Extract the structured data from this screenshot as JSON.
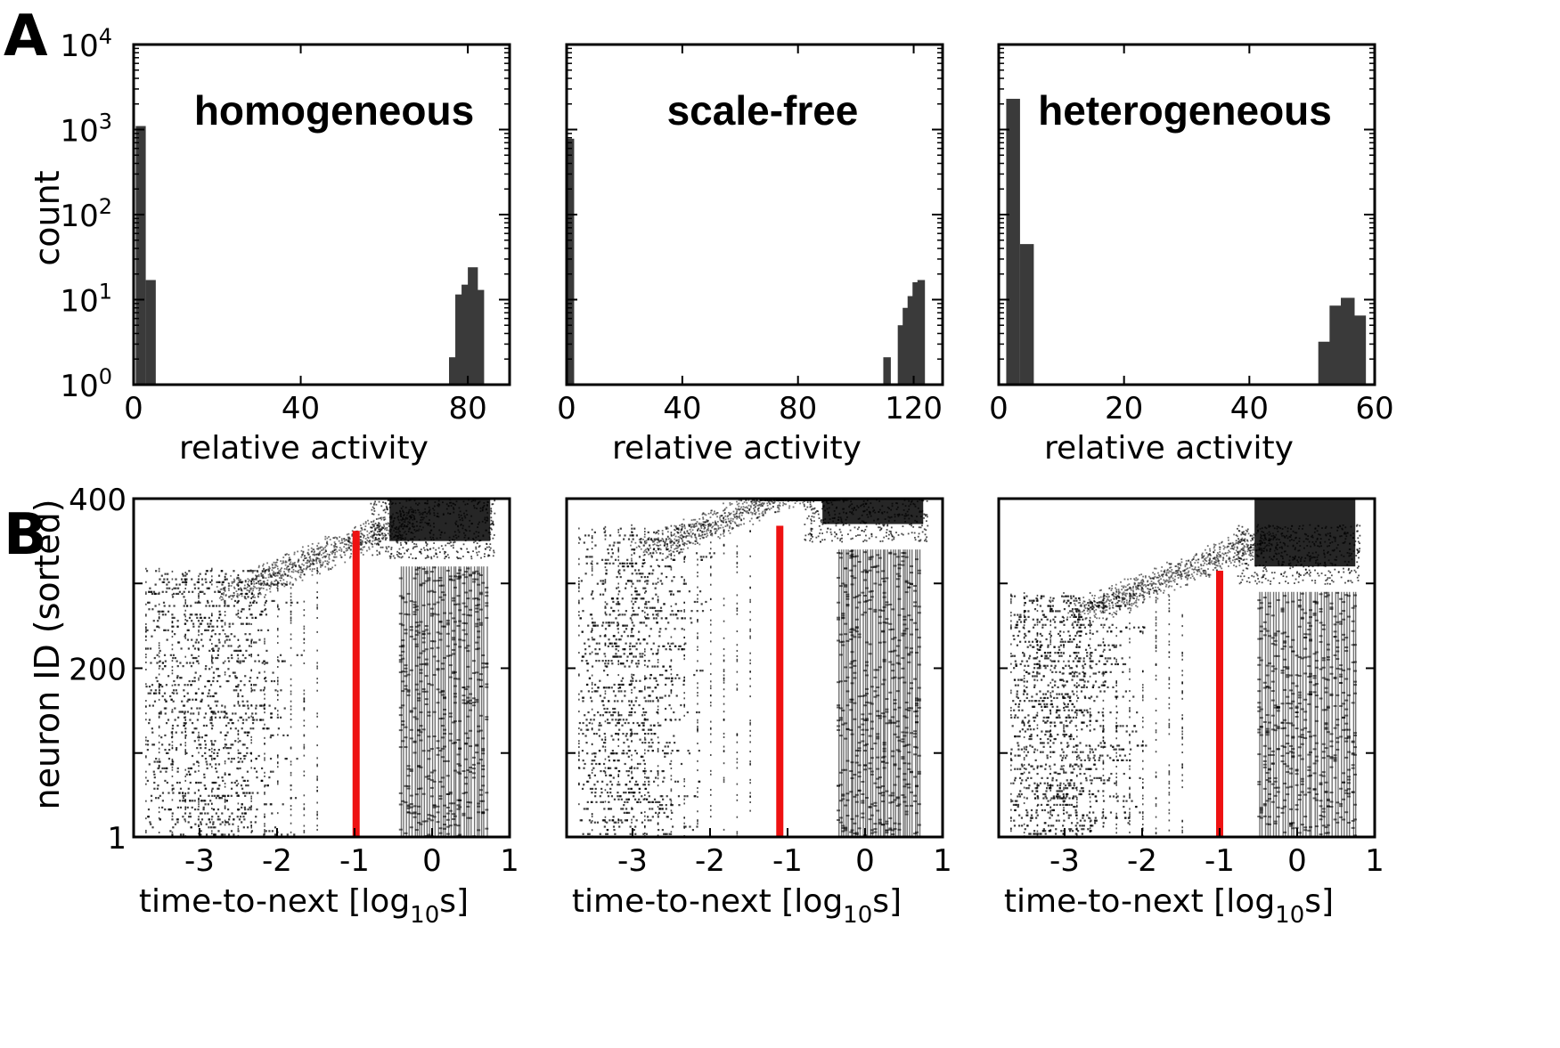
{
  "figure": {
    "panel_a_letter": "A",
    "panel_b_letter": "B"
  },
  "colors": {
    "bar": "#3a3a3a",
    "dots": "#000000",
    "threshold": "#ee1111",
    "axis": "#000000"
  },
  "chart_data": [
    {
      "panel": "A",
      "type": "bar",
      "yscale": "log",
      "title": "homogeneous",
      "xlabel": "relative activity",
      "ylabel": "count",
      "xlim": [
        0,
        90
      ],
      "ylim": [
        1,
        10000
      ],
      "xticks": [
        0,
        40,
        80
      ],
      "yticks": [
        {
          "base": "10",
          "exp": "0"
        },
        {
          "base": "10",
          "exp": "1"
        },
        {
          "base": "10",
          "exp": "2"
        },
        {
          "base": "10",
          "exp": "3"
        },
        {
          "base": "10",
          "exp": "4"
        }
      ],
      "bin_width": 2.4,
      "bars": [
        {
          "x": 0.5,
          "count": 1100
        },
        {
          "x": 2.9,
          "count": 17
        },
        {
          "x": 75.5,
          "count": 2.1
        },
        {
          "x": 77.0,
          "count": 11.5
        },
        {
          "x": 78.5,
          "count": 15
        },
        {
          "x": 80.0,
          "count": 24
        },
        {
          "x": 81.5,
          "count": 13
        }
      ]
    },
    {
      "panel": "A",
      "type": "bar",
      "yscale": "log",
      "title": "scale-free",
      "xlabel": "relative activity",
      "ylabel": "",
      "xlim": [
        0,
        130
      ],
      "ylim": [
        1,
        10000
      ],
      "xticks": [
        0,
        40,
        80,
        120
      ],
      "yticks": [],
      "bin_width": 2.6,
      "bars": [
        {
          "x": 0,
          "count": 780
        },
        {
          "x": 109.5,
          "count": 2.1
        },
        {
          "x": 114.5,
          "count": 5
        },
        {
          "x": 116.2,
          "count": 8
        },
        {
          "x": 117.9,
          "count": 11
        },
        {
          "x": 119.6,
          "count": 16
        },
        {
          "x": 121.3,
          "count": 17
        }
      ]
    },
    {
      "panel": "A",
      "type": "bar",
      "yscale": "log",
      "title": "heterogeneous",
      "xlabel": "relative activity",
      "ylabel": "",
      "xlim": [
        0,
        60
      ],
      "ylim": [
        1,
        10000
      ],
      "xticks": [
        0,
        20,
        40,
        60
      ],
      "yticks": [],
      "bin_width": 2.2,
      "bars": [
        {
          "x": 1.2,
          "count": 2300
        },
        {
          "x": 3.4,
          "count": 45
        },
        {
          "x": 51.0,
          "count": 3.2
        },
        {
          "x": 52.8,
          "count": 8.5
        },
        {
          "x": 54.6,
          "count": 10.5
        },
        {
          "x": 56.4,
          "count": 6.5
        }
      ]
    },
    {
      "panel": "B",
      "type": "scatter",
      "title": "",
      "xlabel_main": "time-to-next [log",
      "xlabel_sub": "10",
      "xlabel_end": "s]",
      "ylabel": "neuron ID (sorted)",
      "xlim": [
        -3.85,
        1.0
      ],
      "ylim": [
        1,
        400
      ],
      "xticks": [
        -3,
        -2,
        -1,
        0,
        1
      ],
      "yticks": [
        1,
        200,
        400
      ],
      "threshold_x": -0.98,
      "threshold_top_id": 362,
      "burst_cols": [
        -0.4,
        0.7
      ],
      "burst_top_id": 320,
      "isolated_cols": [
        -3.7,
        -1.6
      ],
      "isolated_top_id": 320,
      "cloud_center_x": -1.4,
      "cloud_center_id": 335
    },
    {
      "panel": "B",
      "type": "scatter",
      "title": "",
      "xlabel_main": "time-to-next [log",
      "xlabel_sub": "10",
      "xlabel_end": "s]",
      "ylabel": "",
      "xlim": [
        -3.85,
        1.0
      ],
      "ylim": [
        1,
        400
      ],
      "xticks": [
        -3,
        -2,
        -1,
        0,
        1
      ],
      "yticks": [],
      "threshold_x": -1.1,
      "threshold_top_id": 368,
      "burst_cols": [
        -0.35,
        0.7
      ],
      "burst_top_id": 340,
      "isolated_cols": [
        -3.7,
        -1.9
      ],
      "isolated_top_id": 370,
      "cloud_center_x": -1.6,
      "cloud_center_id": 385
    },
    {
      "panel": "B",
      "type": "scatter",
      "title": "",
      "xlabel_main": "time-to-next [log",
      "xlabel_sub": "10",
      "xlabel_end": "s]",
      "ylabel": "",
      "xlim": [
        -3.85,
        1.0
      ],
      "ylim": [
        1,
        400
      ],
      "xticks": [
        -3,
        -2,
        -1,
        0,
        1
      ],
      "yticks": [],
      "threshold_x": -1.0,
      "threshold_top_id": 315,
      "burst_cols": [
        -0.5,
        0.75
      ],
      "burst_top_id": 290,
      "isolated_cols": [
        -3.7,
        -1.9
      ],
      "isolated_top_id": 290,
      "cloud_center_x": -1.6,
      "cloud_center_id": 310
    }
  ]
}
